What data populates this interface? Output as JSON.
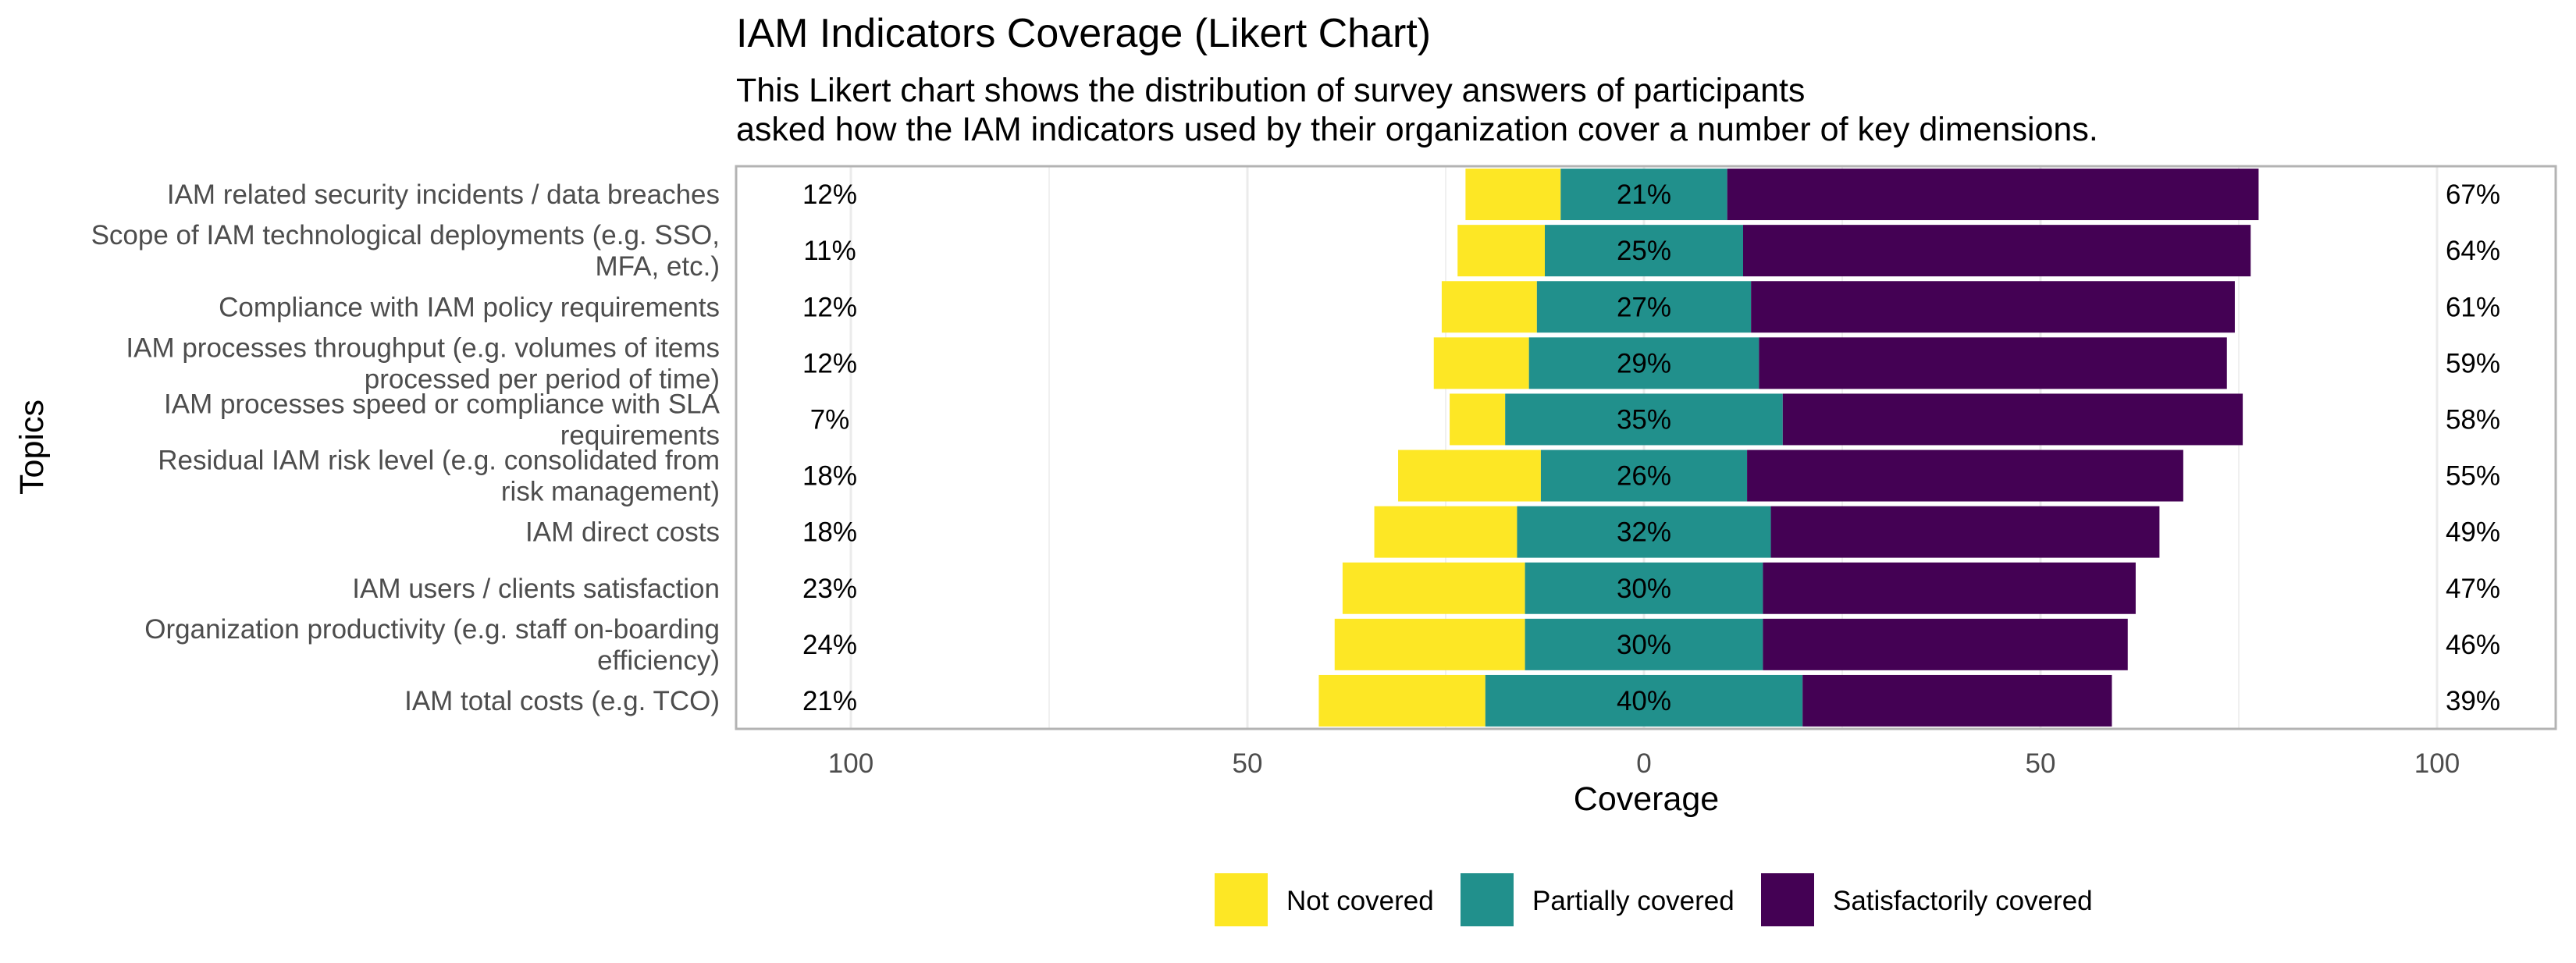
{
  "chart_data": {
    "type": "bar",
    "subtype": "diverging-stacked (likert)",
    "title": "IAM Indicators Coverage (Likert Chart)",
    "subtitle": [
      "This Likert chart shows the distribution of survey answers of participants",
      "asked how the IAM indicators used by their organization cover a number of key dimensions."
    ],
    "xlabel": "Coverage",
    "ylabel": "Topics",
    "xlim": [
      -100,
      100
    ],
    "x_ticks": [
      {
        "value": -100,
        "label": "100"
      },
      {
        "value": -50,
        "label": "50"
      },
      {
        "value": 0,
        "label": "0"
      },
      {
        "value": 50,
        "label": "50"
      },
      {
        "value": 100,
        "label": "100"
      }
    ],
    "legend_position": "bottom",
    "series": [
      {
        "name": "Not covered",
        "color": "#FDE725"
      },
      {
        "name": "Partially covered",
        "color": "#21908C"
      },
      {
        "name": "Satisfactorily covered",
        "color": "#440154"
      }
    ],
    "categories": [
      {
        "label": [
          "IAM related security incidents / data breaches"
        ],
        "not": 12,
        "partial": 21,
        "sat": 67,
        "left_label": "12%",
        "center_label": "21%",
        "right_label": "67%"
      },
      {
        "label": [
          "Scope of IAM technological deployments (e.g. SSO,",
          "MFA, etc.)"
        ],
        "not": 11,
        "partial": 25,
        "sat": 64,
        "left_label": "11%",
        "center_label": "25%",
        "right_label": "64%"
      },
      {
        "label": [
          "Compliance with IAM policy requirements"
        ],
        "not": 12,
        "partial": 27,
        "sat": 61,
        "left_label": "12%",
        "center_label": "27%",
        "right_label": "61%"
      },
      {
        "label": [
          "IAM processes throughput (e.g. volumes of items",
          "processed per period of time)"
        ],
        "not": 12,
        "partial": 29,
        "sat": 59,
        "left_label": "12%",
        "center_label": "29%",
        "right_label": "59%"
      },
      {
        "label": [
          "IAM processes speed or compliance with SLA",
          "requirements"
        ],
        "not": 7,
        "partial": 35,
        "sat": 58,
        "left_label": "7%",
        "center_label": "35%",
        "right_label": "58%"
      },
      {
        "label": [
          "Residual IAM risk level (e.g. consolidated from",
          "risk management)"
        ],
        "not": 18,
        "partial": 26,
        "sat": 55,
        "left_label": "18%",
        "center_label": "26%",
        "right_label": "55%"
      },
      {
        "label": [
          "IAM direct costs"
        ],
        "not": 18,
        "partial": 32,
        "sat": 49,
        "left_label": "18%",
        "center_label": "32%",
        "right_label": "49%"
      },
      {
        "label": [
          "IAM users / clients satisfaction"
        ],
        "not": 23,
        "partial": 30,
        "sat": 47,
        "left_label": "23%",
        "center_label": "30%",
        "right_label": "47%"
      },
      {
        "label": [
          "Organization productivity (e.g. staff on-boarding",
          "efficiency)"
        ],
        "not": 24,
        "partial": 30,
        "sat": 46,
        "left_label": "24%",
        "center_label": "30%",
        "right_label": "46%"
      },
      {
        "label": [
          "IAM total costs (e.g. TCO)"
        ],
        "not": 21,
        "partial": 40,
        "sat": 39,
        "left_label": "21%",
        "center_label": "40%",
        "right_label": "39%"
      }
    ]
  }
}
